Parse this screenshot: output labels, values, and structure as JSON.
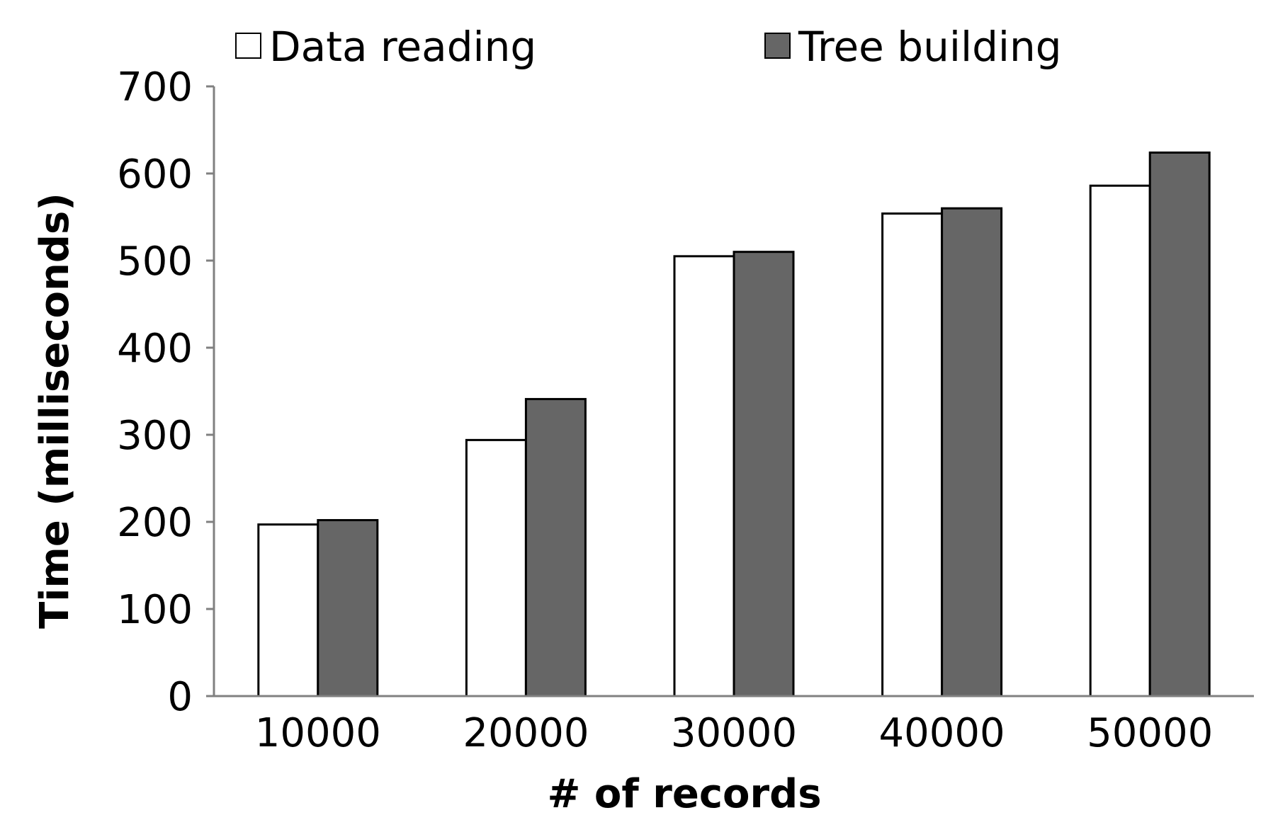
{
  "chart_data": {
    "type": "bar",
    "title": "",
    "xlabel": "# of records",
    "ylabel": "Time (milliseconds)",
    "categories": [
      "10000",
      "20000",
      "30000",
      "40000",
      "50000"
    ],
    "series": [
      {
        "name": "Data reading",
        "values": [
          197,
          294,
          505,
          554,
          586
        ],
        "color": "#ffffff"
      },
      {
        "name": "Tree building",
        "values": [
          202,
          341,
          510,
          560,
          624
        ],
        "color": "#666666"
      }
    ],
    "ylim": [
      0,
      700
    ],
    "yticks": [
      0,
      100,
      200,
      300,
      400,
      500,
      600,
      700
    ],
    "grid": false,
    "legend_position": "top"
  }
}
